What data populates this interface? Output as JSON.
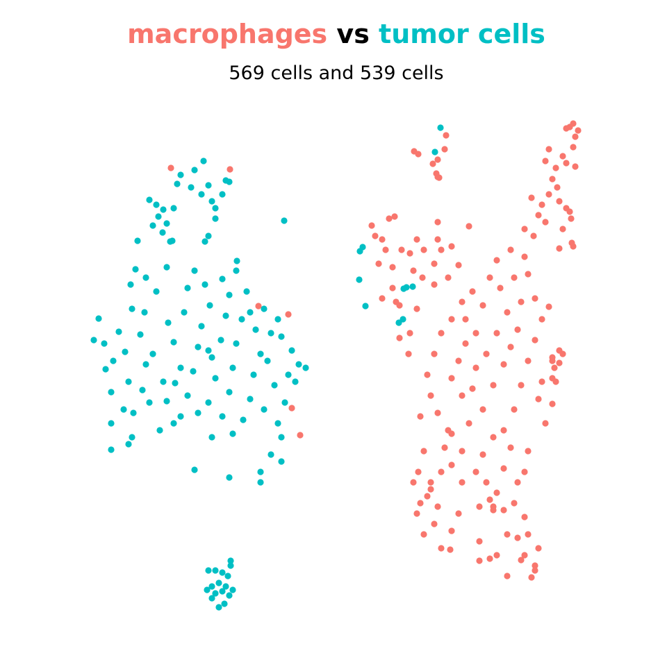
{
  "chart_data": {
    "type": "scatter",
    "title_separator": "vs",
    "subtitle": "569 cells and 539 cells",
    "xlim": [
      0,
      96
    ],
    "ylim": [
      0,
      96
    ],
    "grid": false,
    "series": [
      {
        "name": "macrophages",
        "color": "#F8766D",
        "x": [
          24.6,
          33.1,
          41.5,
          37.2,
          42.0,
          43.2,
          59.6,
          60.2,
          62.3,
          63.0,
          62.8,
          63.2,
          64.0,
          64.2,
          63.0,
          81.5,
          82.0,
          82.5,
          83.2,
          82.8,
          82.5,
          81.0,
          79.0,
          78.5,
          80.0,
          81.5,
          82.8,
          79.5,
          80.2,
          79.0,
          78.0,
          76.5,
          77.5,
          75.5,
          76.8,
          78.5,
          80.5,
          81.5,
          82.0,
          81.0,
          82.2,
          80.5,
          82.5,
          82.3,
          53.5,
          54.0,
          55.0,
          56.0,
          56.8,
          55.5,
          54.5,
          56.5,
          57.8,
          59.0,
          60.0,
          61.0,
          59.5,
          60.8,
          62.5,
          63.0,
          62.5,
          63.5,
          65.0,
          67.5,
          66.0,
          64.5,
          63.0,
          55.0,
          56.5,
          60.0,
          57.5,
          66.5,
          68.0,
          67.0,
          68.5,
          69.5,
          70.5,
          71.5,
          72.0,
          73.0,
          71.5,
          70.0,
          68.5,
          67.0,
          66.0,
          65.0,
          66.5,
          68.0,
          69.5,
          71.0,
          72.5,
          73.5,
          74.5,
          75.0,
          74.0,
          73.5,
          75.5,
          76.0,
          77.0,
          78.0,
          79.0,
          77.0,
          76.0,
          75.0,
          74.0,
          72.5,
          73.5,
          71.0,
          69.5,
          68.5,
          70.0,
          71.5,
          72.5,
          74.0,
          75.5,
          76.0,
          77.5,
          77.0,
          75.5,
          74.5,
          73.0,
          71.0,
          69.0,
          66.5,
          65.0,
          64.0,
          64.5,
          63.0,
          62.0,
          61.5,
          62.5,
          63.5,
          65.0,
          60.5,
          61.0,
          60.2,
          62.0,
          63.0,
          62.5,
          61.0,
          60.0,
          61.5,
          63.5,
          65.0,
          66.5,
          67.5,
          66.0,
          65.0,
          64.8,
          69.0,
          70.5,
          71.0,
          72.5,
          74.5,
          75.5,
          76.0,
          78.5,
          79.5,
          80.0,
          79.8,
          80.5,
          79.5,
          78.0,
          77.5,
          79.5,
          80.5,
          81.0,
          79.5,
          69.0,
          70.5,
          71.5,
          73.0,
          75.0,
          76.5,
          77.0,
          59.5,
          60.5,
          63.5,
          62.0,
          57.0,
          59.0,
          58.8,
          57.5
        ],
        "values": [
          71.8,
          71.6,
          50.7,
          51.9,
          37.2,
          33.3,
          74.2,
          73.8,
          72.4,
          73.0,
          71.0,
          70.4,
          74.5,
          76.5,
          70.5,
          77.5,
          77.7,
          78.2,
          77.2,
          76.3,
          74.8,
          73.5,
          74.5,
          72.8,
          71.8,
          72.5,
          72.0,
          70.2,
          69.0,
          68.0,
          66.5,
          67.5,
          65.0,
          63.0,
          62.0,
          64.0,
          67.0,
          66.0,
          65.5,
          63.0,
          64.5,
          60.2,
          60.5,
          61.0,
          63.5,
          62.0,
          61.5,
          64.5,
          64.8,
          60.0,
          58.0,
          57.5,
          60.0,
          59.5,
          61.5,
          60.0,
          57.0,
          56.0,
          58.0,
          61.5,
          55.0,
          60.0,
          60.5,
          63.4,
          57.8,
          56.0,
          64.0,
          53.0,
          54.5,
          51.5,
          52.0,
          52.5,
          54.0,
          50.0,
          48.0,
          52.0,
          56.0,
          58.5,
          54.5,
          51.0,
          48.0,
          45.0,
          43.0,
          46.5,
          44.0,
          41.5,
          39.0,
          40.0,
          37.0,
          40.5,
          43.5,
          46.0,
          48.5,
          52.5,
          56.0,
          60.0,
          59.0,
          56.5,
          53.0,
          50.0,
          51.8,
          47.0,
          44.0,
          40.5,
          37.0,
          34.0,
          31.5,
          33.0,
          30.5,
          28.0,
          26.5,
          25.0,
          22.5,
          23.5,
          21.5,
          19.0,
          17.0,
          14.5,
          16.0,
          18.5,
          19.0,
          22.5,
          23.0,
          26.5,
          29.0,
          31.5,
          34.0,
          36.5,
          39.0,
          42.0,
          45.0,
          48.0,
          50.0,
          36.0,
          31.0,
          28.0,
          26.5,
          23.0,
          20.5,
          19.0,
          22.0,
          24.5,
          28.0,
          33.5,
          31.0,
          35.0,
          22.0,
          19.5,
          16.8,
          18.0,
          24.0,
          23.0,
          28.5,
          26.5,
          28.0,
          31.0,
          35.0,
          37.8,
          41.0,
          43.0,
          45.5,
          44.5,
          41.0,
          38.5,
          44.0,
          43.7,
          45.0,
          41.5,
          15.2,
          15.5,
          16.0,
          13.0,
          15.3,
          12.8,
          13.8,
          26.5,
          23.5,
          17.0,
          25.5,
          52.5,
          48.0,
          45.0,
          47.3
        ]
      },
      {
        "name": "tumor cells",
        "color": "#00BFC4",
        "x": [
          13.5,
          14.2,
          15.0,
          16.3,
          17.1,
          18.0,
          18.5,
          16.0,
          15.2,
          17.8,
          19.2,
          20.5,
          21.0,
          20.2,
          19.0,
          18.8,
          19.5,
          21.0,
          20.8,
          22.0,
          23.5,
          24.0,
          25.2,
          26.0,
          25.0,
          24.2,
          26.5,
          27.0,
          28.0,
          29.5,
          30.2,
          29.0,
          28.5,
          27.8,
          27.0,
          28.5,
          30.0,
          31.0,
          30.5,
          31.8,
          32.5,
          33.0,
          32.0,
          34.0,
          35.5,
          34.8,
          34.0,
          33.5,
          33.0,
          32.0,
          33.5,
          35.0,
          36.0,
          36.5,
          37.5,
          36.8,
          38.0,
          39.0,
          38.5,
          39.5,
          38.0,
          40.0,
          40.5,
          39.0,
          37.5,
          40.5,
          41.0,
          41.5,
          42.0,
          40.5,
          43.0,
          44.0,
          42.5,
          40.0,
          36.0,
          30.0,
          26.0,
          23.0,
          21.5,
          19.0,
          16.0,
          18.5,
          16.0,
          28.0,
          33.0,
          37.5,
          30.5,
          25.0,
          22.5,
          24.0,
          21.5,
          22.5,
          23.5,
          22.8,
          24.0,
          23.4,
          25.0,
          24.8,
          25.5,
          26.0,
          27.5,
          28.0,
          29.3,
          30.0,
          29.0,
          30.5,
          31.0,
          32.0,
          32.5,
          33.0,
          31.0,
          30.0,
          29.5,
          24.5,
          19.8,
          22.0,
          40.9,
          34.1,
          30.0,
          30.5,
          31.0,
          31.5,
          32.0,
          32.5,
          33.0,
          33.5,
          32.8,
          33.2,
          33.2,
          31.5,
          30.5,
          32.0,
          29.8,
          32.3,
          31.0,
          51.8,
          52.2,
          51.7,
          52.6,
          57.4,
          58.1,
          58.5,
          59.4,
          58.0,
          62.6,
          63.4
        ],
        "values": [
          47.0,
          50.1,
          46.5,
          44.0,
          48.2,
          45.3,
          41.0,
          39.5,
          42.8,
          37.0,
          36.5,
          39.8,
          43.5,
          47.8,
          51.5,
          55.0,
          57.2,
          56.0,
          51.0,
          45.0,
          41.0,
          38.2,
          40.8,
          43.0,
          46.7,
          49.5,
          51.0,
          54.5,
          57.0,
          55.0,
          52.0,
          49.0,
          46.0,
          42.5,
          39.0,
          36.5,
          38.0,
          41.5,
          44.5,
          47.0,
          50.5,
          53.5,
          55.8,
          57.0,
          54.0,
          50.0,
          46.5,
          43.0,
          39.5,
          36.0,
          33.5,
          35.5,
          38.5,
          42.0,
          45.0,
          48.5,
          51.5,
          48.0,
          44.0,
          40.5,
          37.0,
          35.0,
          33.0,
          30.5,
          28.0,
          29.5,
          38.0,
          42.0,
          45.5,
          47.5,
          43.5,
          43.0,
          41.0,
          50.0,
          51.0,
          45.5,
          36.0,
          34.0,
          38.0,
          33.0,
          35.0,
          32.0,
          31.2,
          28.3,
          27.2,
          26.5,
          33.0,
          35.0,
          54.0,
          57.5,
          67.2,
          66.5,
          65.8,
          64.8,
          63.8,
          62.5,
          66.0,
          61.3,
          69.5,
          70.8,
          69.0,
          71.5,
          72.8,
          69.3,
          68.0,
          67.0,
          66.0,
          68.0,
          70.0,
          69.8,
          64.5,
          62.0,
          61.2,
          61.2,
          61.3,
          63.5,
          64.2,
          58.4,
          13.8,
          11.5,
          10.5,
          12.0,
          10.8,
          11.5,
          10.2,
          11.0,
          13.0,
          14.5,
          15.2,
          8.5,
          9.8,
          13.5,
          11.0,
          9.0,
          13.8,
          59.8,
          60.4,
          55.7,
          51.9,
          49.5,
          54.4,
          54.6,
          54.7,
          50.0,
          74.1,
          77.6
        ]
      }
    ]
  }
}
